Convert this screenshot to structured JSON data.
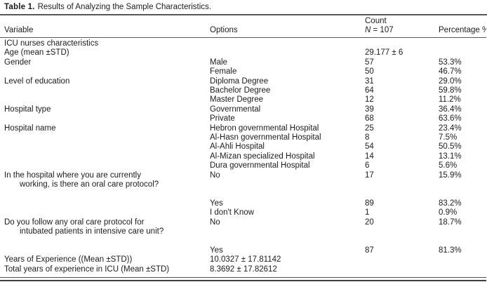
{
  "meta": {
    "title_label": "Table 1.",
    "title_text": "Results of Analyzing the Sample Characteristics."
  },
  "table": {
    "header": {
      "variable": "Variable",
      "options": "Options",
      "count_line1": "Count",
      "count_n": "N",
      "count_rest": " = 107",
      "percentage": "Percentage %"
    },
    "rows": [
      {
        "variable": "ICU nurses characteristics",
        "options": "",
        "count": "",
        "percentage": "",
        "indent": false
      },
      {
        "variable": "Age (mean ±STD)",
        "options": "",
        "count": "29.177 ± 6",
        "percentage": "",
        "indent": false
      },
      {
        "variable": "Gender",
        "options": "Male",
        "count": "57",
        "percentage": "53.3%",
        "indent": false
      },
      {
        "variable": "",
        "options": "Female",
        "count": "50",
        "percentage": "46.7%",
        "indent": false
      },
      {
        "variable": "Level of education",
        "options": "Diploma Degree",
        "count": "31",
        "percentage": "29.0%",
        "indent": false
      },
      {
        "variable": "",
        "options": "Bachelor Degree",
        "count": "64",
        "percentage": "59.8%",
        "indent": false
      },
      {
        "variable": "",
        "options": "Master Degree",
        "count": "12",
        "percentage": "11.2%",
        "indent": false
      },
      {
        "variable": "Hospital type",
        "options": "Governmental",
        "count": "39",
        "percentage": "36.4%",
        "indent": false
      },
      {
        "variable": "",
        "options": "Private",
        "count": "68",
        "percentage": "63.6%",
        "indent": false
      },
      {
        "variable": "Hospital name",
        "options": "Hebron governmental Hospital",
        "count": "25",
        "percentage": "23.4%",
        "indent": false
      },
      {
        "variable": "",
        "options": "Al-Hasn governmental Hospital",
        "count": "8",
        "percentage": "7.5%",
        "indent": false
      },
      {
        "variable": "",
        "options": "Al-Ahli Hospital",
        "count": "54",
        "percentage": "50.5%",
        "indent": false
      },
      {
        "variable": "",
        "options": "Al-Mizan specialized Hospital",
        "count": "14",
        "percentage": "13.1%",
        "indent": false
      },
      {
        "variable": "",
        "options": "Dura governmental Hospital",
        "count": "6",
        "percentage": "5.6%",
        "indent": false
      },
      {
        "variable": "In the hospital where you are currently",
        "options": "No",
        "count": "17",
        "percentage": "15.9%",
        "indent": false
      },
      {
        "variable": "working, is there an oral care protocol?",
        "options": "",
        "count": "",
        "percentage": "",
        "indent": true
      },
      {
        "variable": "",
        "options": "",
        "count": "",
        "percentage": "",
        "indent": false
      },
      {
        "variable": "",
        "options": "Yes",
        "count": "89",
        "percentage": "83.2%",
        "indent": false
      },
      {
        "variable": "",
        "options": "I don't Know",
        "count": "1",
        "percentage": "0.9%",
        "indent": false
      },
      {
        "variable": "Do you follow any oral care protocol for",
        "options": "No",
        "count": "20",
        "percentage": "18.7%",
        "indent": false
      },
      {
        "variable": "intubated patients in intensive care unit?",
        "options": "",
        "count": "",
        "percentage": "",
        "indent": true
      },
      {
        "variable": "",
        "options": "",
        "count": "",
        "percentage": "",
        "indent": false
      },
      {
        "variable": "",
        "options": "Yes",
        "count": "87",
        "percentage": "81.3%",
        "indent": false
      },
      {
        "variable": "Years of Experience ((Mean ±STD))",
        "options": "10.0327 ± 17.81142",
        "count": "",
        "percentage": "",
        "indent": false
      },
      {
        "variable": "Total years of experience in ICU (Mean ±STD)",
        "options": "8.3692 ± 17.82612",
        "count": "",
        "percentage": "",
        "indent": false
      }
    ]
  }
}
